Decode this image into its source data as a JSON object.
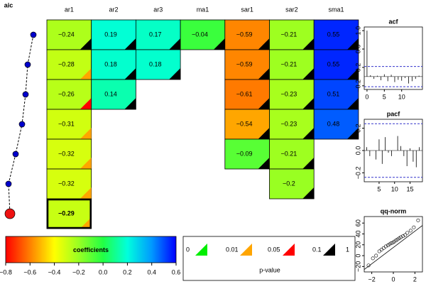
{
  "chart_data": [
    {
      "type": "heatmap",
      "columns": [
        "ar1",
        "ar2",
        "ar3",
        "ma1",
        "sar1",
        "sar2",
        "sma1"
      ],
      "values": [
        [
          -0.24,
          0.19,
          0.17,
          -0.04,
          -0.59,
          -0.21,
          0.55
        ],
        [
          -0.28,
          0.18,
          0.18,
          null,
          -0.59,
          -0.21,
          0.55
        ],
        [
          -0.26,
          0.14,
          null,
          null,
          -0.61,
          -0.23,
          0.51
        ],
        [
          -0.31,
          null,
          null,
          null,
          -0.54,
          -0.23,
          0.48
        ],
        [
          -0.32,
          null,
          null,
          null,
          -0.09,
          -0.21,
          null
        ],
        [
          -0.32,
          null,
          null,
          null,
          null,
          -0.2,
          null
        ],
        [
          -0.29,
          null,
          null,
          null,
          null,
          null,
          null
        ]
      ],
      "value_labels": [
        [
          "−0.24",
          "0.19",
          "0.17",
          "−0.04",
          "−0.59",
          "−0.21",
          "0.55"
        ],
        [
          "−0.28",
          "0.18",
          "0.18",
          null,
          "−0.59",
          "−0.21",
          "0.55"
        ],
        [
          "−0.26",
          "0.14",
          null,
          null,
          "−0.61",
          "−0.23",
          "0.51"
        ],
        [
          "−0.31",
          null,
          null,
          null,
          "−0.54",
          "−0.23",
          "0.48"
        ],
        [
          "−0.32",
          null,
          null,
          null,
          "−0.09",
          "−0.21",
          null
        ],
        [
          "−0.32",
          null,
          null,
          null,
          null,
          "−0.2",
          null
        ],
        [
          "−0.29",
          null,
          null,
          null,
          null,
          null,
          null
        ]
      ],
      "pvalue_class": [
        [
          3,
          3,
          3,
          3,
          3,
          3,
          3
        ],
        [
          1,
          3,
          3,
          null,
          3,
          3,
          3
        ],
        [
          2,
          3,
          null,
          null,
          3,
          3,
          3
        ],
        [
          1,
          null,
          null,
          null,
          3,
          3,
          3
        ],
        [
          1,
          null,
          null,
          null,
          3,
          3,
          null
        ],
        [
          1,
          null,
          null,
          null,
          null,
          3,
          null
        ],
        [
          1,
          null,
          null,
          null,
          null,
          null,
          null
        ]
      ],
      "highlight": [
        6,
        0
      ]
    },
    {
      "type": "dot-line",
      "title": "aic",
      "values": [
        45,
        37,
        34,
        29,
        20,
        10,
        12
      ],
      "xlim": [
        0,
        50
      ],
      "highlight": 6,
      "color": "#0000cc",
      "highlight_color": "#ee1111"
    },
    {
      "type": "colorbar",
      "label": "coefficients",
      "xlim": [
        -0.8,
        0.6
      ],
      "xticks": [
        {
          "value": -0.8,
          "label": "−0.8"
        },
        {
          "value": -0.6,
          "label": "−0.6"
        },
        {
          "value": -0.4,
          "label": "−0.4"
        },
        {
          "value": -0.2,
          "label": "−0.2"
        },
        {
          "value": 0,
          "label": "0.0"
        },
        {
          "value": 0.2,
          "label": "0.2"
        },
        {
          "value": 0.4,
          "label": "0.4"
        },
        {
          "value": 0.6,
          "label": "0.6"
        }
      ],
      "stops": [
        [
          -0.8,
          "#ff0000"
        ],
        [
          -0.6,
          "#ff8000"
        ],
        [
          -0.4,
          "#ffff00"
        ],
        [
          -0.2,
          "#99ff22"
        ],
        [
          0,
          "#22ff44"
        ],
        [
          0.2,
          "#00ffdd"
        ],
        [
          0.4,
          "#0099ff"
        ],
        [
          0.6,
          "#0000ff"
        ]
      ]
    },
    {
      "type": "pvalue-legend",
      "title": "p-value",
      "breaks": [
        0,
        0.01,
        0.05,
        0.1,
        1
      ],
      "colors": [
        "#00ee00",
        "#ffa500",
        "#ff0000",
        "#000000"
      ]
    },
    {
      "type": "acf",
      "title": "acf",
      "x": [
        0,
        1,
        2,
        3,
        4,
        5,
        6,
        7,
        8,
        9,
        10,
        11,
        12,
        13,
        14,
        15
      ],
      "values": [
        1,
        0.03,
        -0.05,
        0.02,
        -0.08,
        0.05,
        -0.1,
        0.04,
        -0.12,
        -0.07,
        -0.09,
        -0.03,
        -0.15,
        -0.1,
        -0.05,
        0.02
      ],
      "xlim": [
        -0.8,
        16
      ],
      "xticks": [
        0,
        5,
        10
      ],
      "ylim": [
        -0.28,
        1.08
      ],
      "yticks": [
        {
          "value": -0.2,
          "label": "−0.2"
        },
        {
          "value": 0.2,
          "label": "0.2"
        },
        {
          "value": 0.6,
          "label": "0.6"
        },
        {
          "value": 1.0,
          "label": "1.0"
        }
      ],
      "conf": 0.22
    },
    {
      "type": "acf",
      "title": "pacf",
      "x": [
        1,
        2,
        3,
        4,
        5,
        6,
        7,
        8,
        9,
        10,
        11,
        12,
        13,
        14,
        15,
        16,
        17,
        18
      ],
      "values": [
        0.03,
        -0.05,
        0.0,
        -0.08,
        0.1,
        -0.12,
        0.12,
        -0.02,
        -0.05,
        0.0,
        0.13,
        0.04,
        -0.05,
        -0.14,
        0.02,
        -0.1,
        -0.15,
        0.03
      ],
      "xlim": [
        0.2,
        19
      ],
      "xticks": [
        5,
        10,
        15
      ],
      "ylim": [
        -0.28,
        0.28
      ],
      "yticks": [
        {
          "value": -0.2,
          "label": "−0.2"
        },
        {
          "value": 0,
          "label": "0.0"
        },
        {
          "value": 0.2,
          "label": "0.2"
        }
      ],
      "conf": 0.24
    },
    {
      "type": "qq",
      "title": "qq-norm",
      "x": [
        -2.3,
        -1.9,
        -1.6,
        -1.3,
        -1.1,
        -0.9,
        -0.7,
        -0.5,
        -0.35,
        -0.2,
        -0.05,
        0.1,
        0.25,
        0.4,
        0.55,
        0.7,
        0.9,
        1.1,
        1.3,
        1.6,
        1.9,
        2.3
      ],
      "y": [
        -18,
        -5,
        0,
        8,
        11,
        14,
        17,
        19,
        21,
        23,
        24,
        26,
        28,
        30,
        32,
        34,
        36,
        38,
        42,
        46,
        52,
        65
      ],
      "xlim": [
        -2.7,
        2.7
      ],
      "ylim": [
        -30,
        72
      ],
      "xticks": [
        {
          "value": -2,
          "label": "−2"
        },
        0,
        2
      ],
      "yticks": [
        {
          "value": -20,
          "label": "−20"
        },
        0,
        20,
        40,
        60
      ],
      "qqline": [
        15,
        15
      ]
    }
  ]
}
